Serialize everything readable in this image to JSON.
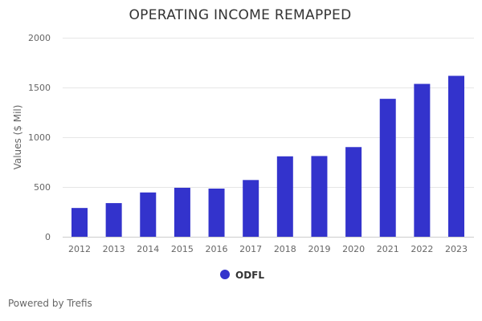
{
  "chart_data": {
    "type": "bar",
    "title": "OPERATING INCOME REMAPPED",
    "xlabel": "",
    "ylabel": "Values ($ Mil)",
    "categories": [
      "2012",
      "2013",
      "2014",
      "2015",
      "2016",
      "2017",
      "2018",
      "2019",
      "2020",
      "2021",
      "2022",
      "2023"
    ],
    "series": [
      {
        "name": "ODFL",
        "color": "#3333cc",
        "values": [
          289,
          338,
          445,
          492,
          484,
          570,
          808,
          811,
          901,
          1386,
          1536,
          1617
        ]
      }
    ],
    "ylim": [
      0,
      2000
    ],
    "yticks": [
      0,
      500,
      1000,
      1500,
      2000
    ],
    "grid": true,
    "legend_position": "bottom-center"
  },
  "credit": "Powered by Trefis"
}
